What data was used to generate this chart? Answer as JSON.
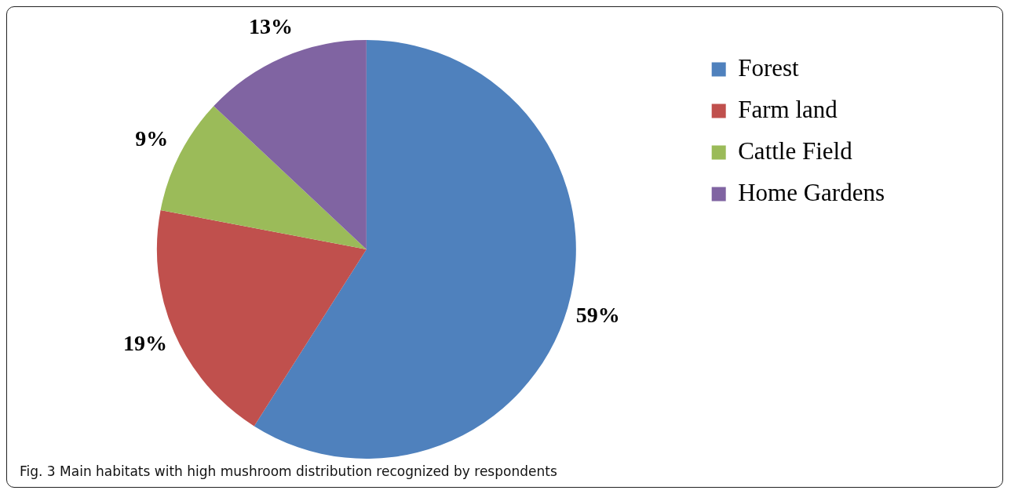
{
  "chart_data": {
    "type": "pie",
    "categories": [
      "Forest",
      "Farm land",
      "Cattle Field",
      "Home Gardens"
    ],
    "values": [
      59,
      19,
      9,
      13
    ],
    "colors": [
      "#4f81bd",
      "#c0504d",
      "#9bbb59",
      "#8064a2"
    ],
    "value_labels": [
      "59%",
      "19%",
      "9%",
      "13%"
    ],
    "legend": "top right",
    "annotations": [
      "Fig. 3 Main habitats with high mushroom distribution recognized by respondents"
    ]
  }
}
